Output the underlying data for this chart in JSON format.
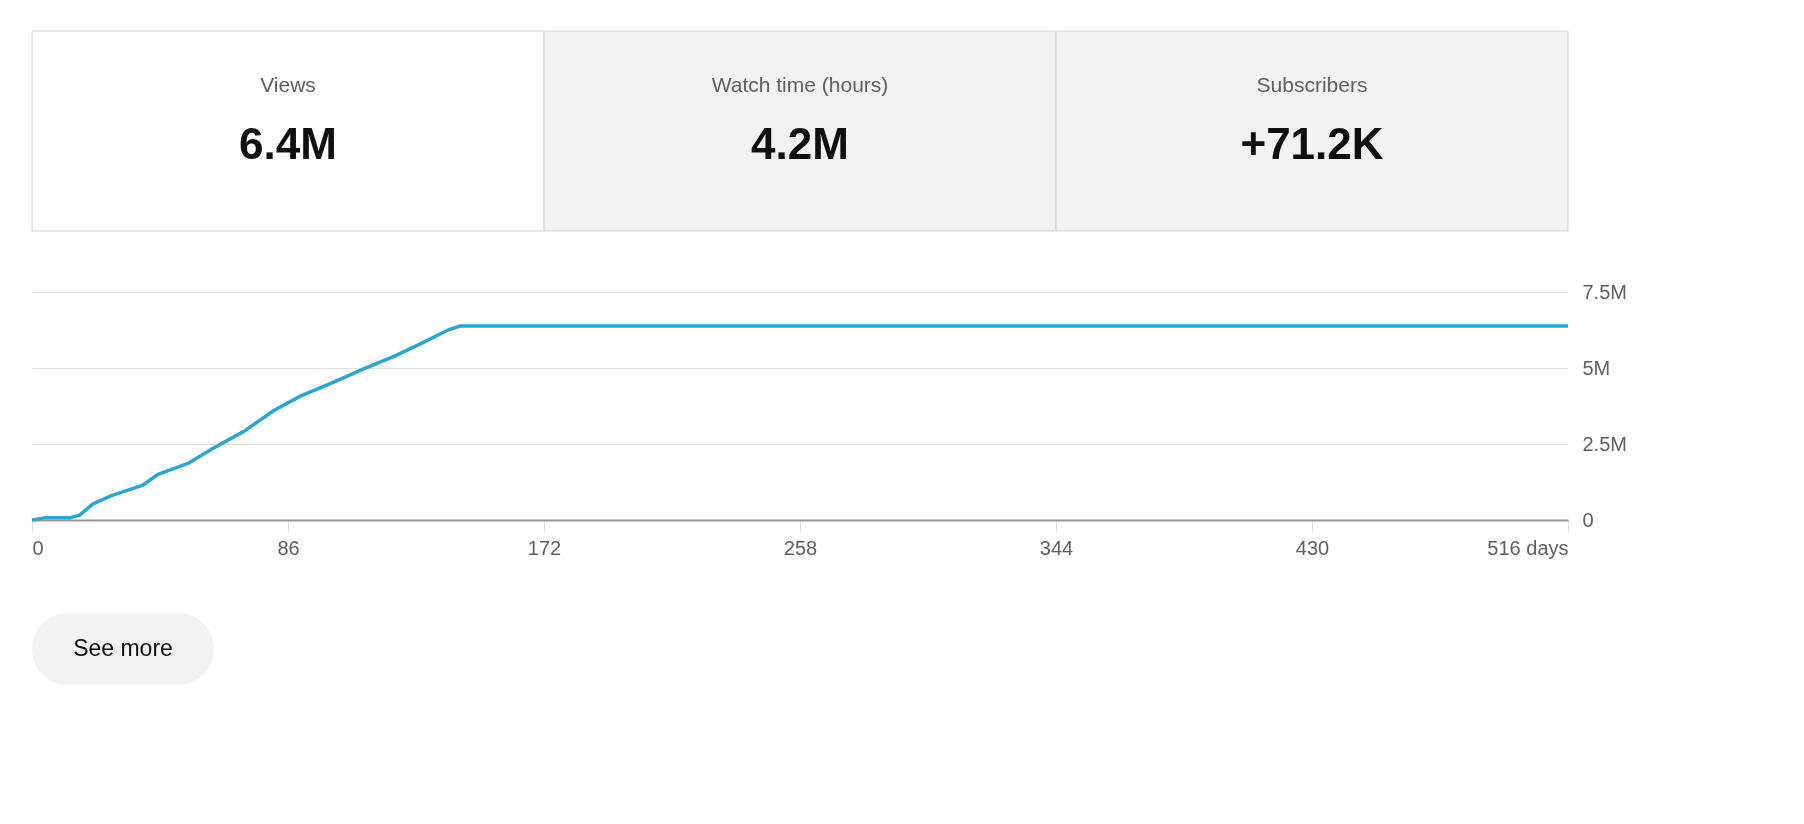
{
  "chart_data": {
    "type": "line",
    "annotations": [
      "Views",
      "6.4M",
      "Watch time (hours)",
      "4.2M",
      "Subscribers",
      "+71.2K",
      "See more"
    ],
    "x": [
      0,
      4.3,
      12.7,
      16,
      20.5,
      26.7,
      37.3,
      42.3,
      52.4,
      61.4,
      71.4,
      81.5,
      90.5,
      100.6,
      111.8,
      121.8,
      130.8,
      139.8,
      143.7,
      516
    ],
    "series": [
      {
        "color": "#2ba5d1",
        "values": [
          0,
          70000,
          70000,
          160000,
          530000,
          800000,
          1150000,
          1500000,
          1860000,
          2390000,
          2930000,
          3620000,
          4090000,
          4500000,
          4990000,
          5390000,
          5810000,
          6250000,
          6380000,
          6380000
        ]
      }
    ],
    "xlim": [
      0,
      516
    ],
    "xticks": [
      0,
      86,
      172,
      258,
      344,
      430,
      {
        "value": 516,
        "label": "516 days"
      }
    ],
    "ylim": [
      0,
      7500000
    ],
    "yticks": [
      {
        "value": 0,
        "label": "0"
      },
      {
        "value": 2500000,
        "label": "2.5M"
      },
      {
        "value": 5000000,
        "label": "5M"
      },
      {
        "value": 7500000,
        "label": "7.5M"
      }
    ],
    "grid": "y",
    "marker": "none",
    "line_style": "solid"
  }
}
